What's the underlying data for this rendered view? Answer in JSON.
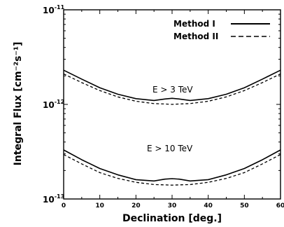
{
  "chart_data": {
    "type": "line",
    "xlabel": "Declination [deg.]",
    "ylabel": "Integral Flux [cm⁻²s⁻¹]",
    "xlim": [
      0,
      60
    ],
    "ylim": [
      1e-13,
      1e-11
    ],
    "yscale": "log",
    "x_ticks": [
      "0",
      "10",
      "20",
      "30",
      "40",
      "50",
      "60"
    ],
    "y_ticks": [
      {
        "value": 1e-11,
        "base": "10",
        "exp": "-11"
      },
      {
        "value": 1e-12,
        "base": "10",
        "exp": "-12"
      },
      {
        "value": 1e-13,
        "base": "10",
        "exp": "-13"
      }
    ],
    "legend": {
      "position": "top-right",
      "entries": [
        {
          "label": "Method I",
          "style": "solid"
        },
        {
          "label": "Method II",
          "style": "dashed"
        }
      ]
    },
    "annotations": [
      "E > 3 TeV",
      "E > 10 TeV"
    ],
    "x": [
      0,
      5,
      10,
      15,
      20,
      25,
      28,
      30,
      32,
      35,
      40,
      45,
      50,
      55,
      60
    ],
    "series": [
      {
        "name": "Method I",
        "group": "E > 3 TeV",
        "style": "solid",
        "values": [
          2.3e-12,
          1.85e-12,
          1.5e-12,
          1.28e-12,
          1.15e-12,
          1.1e-12,
          1.14e-12,
          1.16e-12,
          1.14e-12,
          1.1e-12,
          1.15e-12,
          1.28e-12,
          1.5e-12,
          1.85e-12,
          2.3e-12
        ]
      },
      {
        "name": "Method II",
        "group": "E > 3 TeV",
        "style": "dashed",
        "values": [
          2.1e-12,
          1.7e-12,
          1.4e-12,
          1.2e-12,
          1.08e-12,
          1.02e-12,
          1.01e-12,
          1e-12,
          1.01e-12,
          1.02e-12,
          1.08e-12,
          1.2e-12,
          1.4e-12,
          1.7e-12,
          2.1e-12
        ]
      },
      {
        "name": "Method I",
        "group": "E > 10 TeV",
        "style": "solid",
        "values": [
          3.3e-13,
          2.6e-13,
          2.1e-13,
          1.8e-13,
          1.6e-13,
          1.55e-13,
          1.62e-13,
          1.64e-13,
          1.62e-13,
          1.55e-13,
          1.6e-13,
          1.8e-13,
          2.1e-13,
          2.6e-13,
          3.3e-13
        ]
      },
      {
        "name": "Method II",
        "group": "E > 10 TeV",
        "style": "dashed",
        "values": [
          2.95e-13,
          2.35e-13,
          1.9e-13,
          1.65e-13,
          1.5e-13,
          1.42e-13,
          1.41e-13,
          1.4e-13,
          1.41e-13,
          1.42e-13,
          1.5e-13,
          1.65e-13,
          1.9e-13,
          2.35e-13,
          2.95e-13
        ]
      }
    ]
  }
}
